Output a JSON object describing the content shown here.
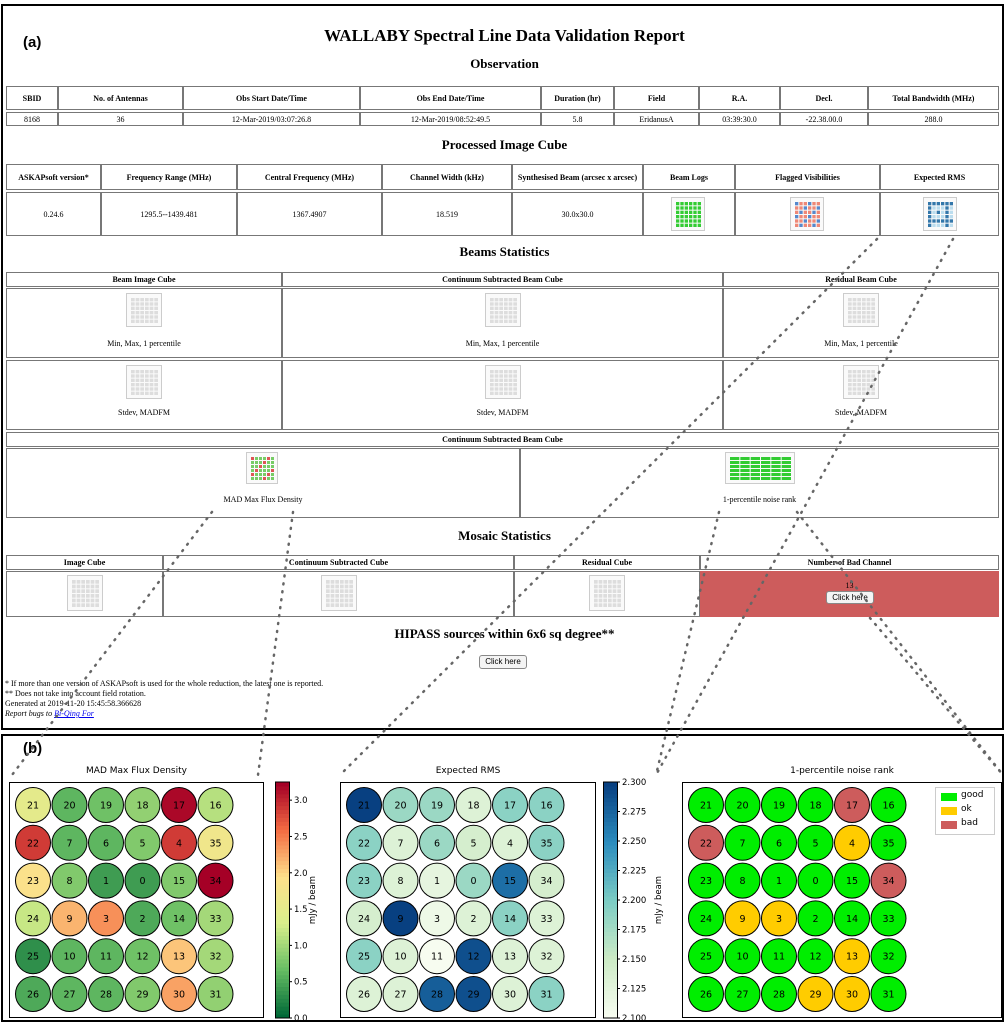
{
  "panel_a_label": "(a)",
  "panel_b_label": "(b)",
  "report_title": "WALLABY Spectral Line Data Validation Report",
  "observation": {
    "heading": "Observation",
    "headers": [
      "SBID",
      "No. of Antennas",
      "Obs Start Date/Time",
      "Obs End Date/Time",
      "Duration (hr)",
      "Field",
      "R.A.",
      "Decl.",
      "Total Bandwidth (MHz)"
    ],
    "values": [
      "8168",
      "36",
      "12-Mar-2019/03:07:26.8",
      "12-Mar-2019/08:52:49.5",
      "5.8",
      "EridanusA",
      "03:39:30.0",
      "-22.38.00.0",
      "288.0"
    ]
  },
  "processed": {
    "heading": "Processed Image Cube",
    "headers": [
      "ASKAPsoft version*",
      "Frequency Range (MHz)",
      "Central Frequency (MHz)",
      "Channel Width (kHz)",
      "Synthesised Beam (arcsec x arcsec)",
      "Beam Logs",
      "Flagged Visibilities",
      "Expected RMS"
    ],
    "values": [
      "0.24.6",
      "1295.5--1439.481",
      "1367.4907",
      "18.519",
      "30.0x30.0"
    ]
  },
  "beams": {
    "heading": "Beams Statistics",
    "headers": [
      "Beam Image Cube",
      "Continuum Subtracted Beam Cube",
      "Residual Beam Cube"
    ],
    "row1_caption": "Min, Max, 1 percentile",
    "row2_caption": "Stdev, MADFM",
    "contsub_header": "Continuum Subtracted Beam Cube",
    "mad_caption": "MAD Max Flux Density",
    "noise_caption": "1-percentile noise rank"
  },
  "mosaic": {
    "heading": "Mosaic Statistics",
    "headers": [
      "Image Cube",
      "Continuum Subtracted Cube",
      "Residual Cube",
      "Number of Bad Channel"
    ],
    "bad_channel_count": "13",
    "bad_channel_button": "Click here"
  },
  "hipass": {
    "heading": "HIPASS sources within 6x6 sq degree**",
    "button": "Click here"
  },
  "footnotes": {
    "note1": "* If more than one version of ASKAPsoft is used for the whole reduction, the latest one is reported.",
    "note2": "** Does not take into account field rotation.",
    "generated": "Generated at 2019-11-20 15:45:58.366628",
    "report_prefix": "Report bugs to",
    "report_link": "Bi-Qing For"
  },
  "colors": {
    "bad_cell": "#cd5c5c",
    "good": "#00ee00",
    "ok": "#ffcc00",
    "bad": "#cd5c5c"
  },
  "chart_data": [
    {
      "type": "heatmap",
      "title": "MAD Max Flux Density",
      "colorbar_label": "mJy / beam",
      "colorbar_ticks": [
        "0.0",
        "0.5",
        "1.0",
        "1.5",
        "2.0",
        "2.5",
        "3.0"
      ],
      "colorbar_range": [
        0,
        3.25
      ],
      "colormap": "RdYlGn_r",
      "rows": [
        [
          {
            "beam": "21",
            "value": 1.5
          },
          {
            "beam": "20",
            "value": 0.6
          },
          {
            "beam": "19",
            "value": 0.7
          },
          {
            "beam": "18",
            "value": 0.9
          },
          {
            "beam": "17",
            "value": 3.2
          },
          {
            "beam": "16",
            "value": 1.1
          }
        ],
        [
          {
            "beam": "22",
            "value": 2.9
          },
          {
            "beam": "7",
            "value": 0.6
          },
          {
            "beam": "6",
            "value": 0.6
          },
          {
            "beam": "5",
            "value": 0.8
          },
          {
            "beam": "4",
            "value": 2.9
          },
          {
            "beam": "35",
            "value": 1.7
          }
        ],
        [
          {
            "beam": "23",
            "value": 1.9
          },
          {
            "beam": "8",
            "value": 0.8
          },
          {
            "beam": "1",
            "value": 0.4
          },
          {
            "beam": "0",
            "value": 0.4
          },
          {
            "beam": "15",
            "value": 0.8
          },
          {
            "beam": "34",
            "value": 3.3
          }
        ],
        [
          {
            "beam": "24",
            "value": 1.2
          },
          {
            "beam": "9",
            "value": 2.2
          },
          {
            "beam": "3",
            "value": 2.4
          },
          {
            "beam": "2",
            "value": 0.5
          },
          {
            "beam": "14",
            "value": 0.7
          },
          {
            "beam": "33",
            "value": 1.0
          }
        ],
        [
          {
            "beam": "25",
            "value": 0.3
          },
          {
            "beam": "10",
            "value": 0.6
          },
          {
            "beam": "11",
            "value": 0.6
          },
          {
            "beam": "12",
            "value": 0.7
          },
          {
            "beam": "13",
            "value": 2.1
          },
          {
            "beam": "32",
            "value": 1.0
          }
        ],
        [
          {
            "beam": "26",
            "value": 0.5
          },
          {
            "beam": "27",
            "value": 0.6
          },
          {
            "beam": "28",
            "value": 0.6
          },
          {
            "beam": "29",
            "value": 0.8
          },
          {
            "beam": "30",
            "value": 2.3
          },
          {
            "beam": "31",
            "value": 0.9
          }
        ]
      ]
    },
    {
      "type": "heatmap",
      "title": "Expected RMS",
      "colorbar_label": "mJy / beam",
      "colorbar_ticks": [
        "2.100",
        "2.125",
        "2.150",
        "2.175",
        "2.200",
        "2.225",
        "2.250",
        "2.275",
        "2.300"
      ],
      "colorbar_range": [
        2.1,
        2.3
      ],
      "colormap": "GnBu",
      "rows": [
        [
          {
            "beam": "21",
            "value": 2.3
          },
          {
            "beam": "20",
            "value": 2.18
          },
          {
            "beam": "19",
            "value": 2.18
          },
          {
            "beam": "18",
            "value": 2.13
          },
          {
            "beam": "17",
            "value": 2.19
          },
          {
            "beam": "16",
            "value": 2.19
          }
        ],
        [
          {
            "beam": "22",
            "value": 2.19
          },
          {
            "beam": "7",
            "value": 2.13
          },
          {
            "beam": "6",
            "value": 2.18
          },
          {
            "beam": "5",
            "value": 2.14
          },
          {
            "beam": "4",
            "value": 2.13
          },
          {
            "beam": "35",
            "value": 2.19
          }
        ],
        [
          {
            "beam": "23",
            "value": 2.19
          },
          {
            "beam": "8",
            "value": 2.13
          },
          {
            "beam": "1",
            "value": 2.12
          },
          {
            "beam": "0",
            "value": 2.18
          },
          {
            "beam": "15",
            "value": 2.27
          },
          {
            "beam": "34",
            "value": 2.14
          }
        ],
        [
          {
            "beam": "24",
            "value": 2.14
          },
          {
            "beam": "9",
            "value": 2.3
          },
          {
            "beam": "3",
            "value": 2.11
          },
          {
            "beam": "2",
            "value": 2.13
          },
          {
            "beam": "14",
            "value": 2.19
          },
          {
            "beam": "33",
            "value": 2.13
          }
        ],
        [
          {
            "beam": "25",
            "value": 2.19
          },
          {
            "beam": "10",
            "value": 2.13
          },
          {
            "beam": "11",
            "value": 2.1
          },
          {
            "beam": "12",
            "value": 2.29
          },
          {
            "beam": "13",
            "value": 2.13
          },
          {
            "beam": "32",
            "value": 2.13
          }
        ],
        [
          {
            "beam": "26",
            "value": 2.13
          },
          {
            "beam": "27",
            "value": 2.13
          },
          {
            "beam": "28",
            "value": 2.28
          },
          {
            "beam": "29",
            "value": 2.29
          },
          {
            "beam": "30",
            "value": 2.13
          },
          {
            "beam": "31",
            "value": 2.19
          }
        ]
      ]
    },
    {
      "type": "heatmap",
      "title": "1-percentile noise rank",
      "legend": [
        {
          "label": "good",
          "color": "#00ee00"
        },
        {
          "label": "ok",
          "color": "#ffcc00"
        },
        {
          "label": "bad",
          "color": "#cd5c5c"
        }
      ],
      "legend_position": "top-right",
      "rows": [
        [
          {
            "beam": "21",
            "rank": "good"
          },
          {
            "beam": "20",
            "rank": "good"
          },
          {
            "beam": "19",
            "rank": "good"
          },
          {
            "beam": "18",
            "rank": "good"
          },
          {
            "beam": "17",
            "rank": "bad"
          },
          {
            "beam": "16",
            "rank": "good"
          }
        ],
        [
          {
            "beam": "22",
            "rank": "bad"
          },
          {
            "beam": "7",
            "rank": "good"
          },
          {
            "beam": "6",
            "rank": "good"
          },
          {
            "beam": "5",
            "rank": "good"
          },
          {
            "beam": "4",
            "rank": "ok"
          },
          {
            "beam": "35",
            "rank": "good"
          }
        ],
        [
          {
            "beam": "23",
            "rank": "good"
          },
          {
            "beam": "8",
            "rank": "good"
          },
          {
            "beam": "1",
            "rank": "good"
          },
          {
            "beam": "0",
            "rank": "good"
          },
          {
            "beam": "15",
            "rank": "good"
          },
          {
            "beam": "34",
            "rank": "bad"
          }
        ],
        [
          {
            "beam": "24",
            "rank": "good"
          },
          {
            "beam": "9",
            "rank": "ok"
          },
          {
            "beam": "3",
            "rank": "ok"
          },
          {
            "beam": "2",
            "rank": "good"
          },
          {
            "beam": "14",
            "rank": "good"
          },
          {
            "beam": "33",
            "rank": "good"
          }
        ],
        [
          {
            "beam": "25",
            "rank": "good"
          },
          {
            "beam": "10",
            "rank": "good"
          },
          {
            "beam": "11",
            "rank": "good"
          },
          {
            "beam": "12",
            "rank": "good"
          },
          {
            "beam": "13",
            "rank": "ok"
          },
          {
            "beam": "32",
            "rank": "good"
          }
        ],
        [
          {
            "beam": "26",
            "rank": "good"
          },
          {
            "beam": "27",
            "rank": "good"
          },
          {
            "beam": "28",
            "rank": "good"
          },
          {
            "beam": "29",
            "rank": "ok"
          },
          {
            "beam": "30",
            "rank": "ok"
          },
          {
            "beam": "31",
            "rank": "good"
          }
        ]
      ]
    }
  ]
}
